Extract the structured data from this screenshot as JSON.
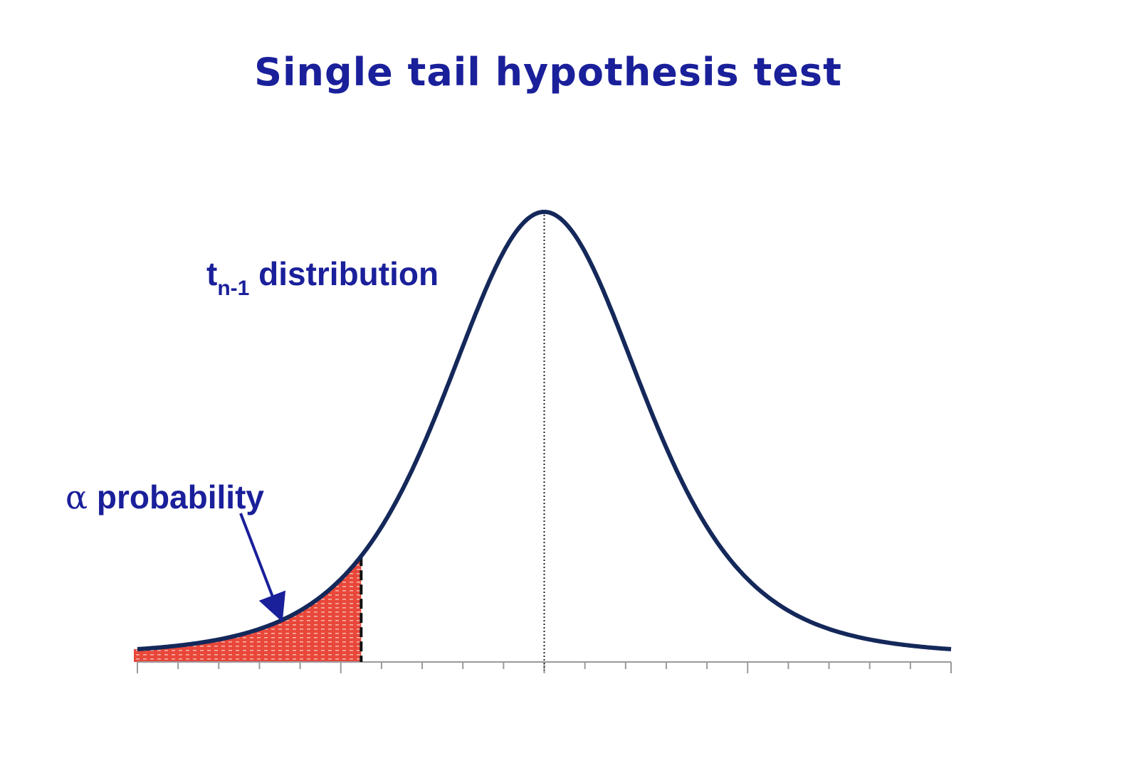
{
  "title": "Single tail hypothesis test",
  "distribution_label": {
    "main": "t",
    "subscript": "n-1",
    "suffix": " distribution"
  },
  "alpha_label": {
    "symbol": "α",
    "text": " probability"
  },
  "diagram": {
    "curve": "t distribution density, symmetric about 0",
    "shaded_region": "left tail",
    "x_min": -4,
    "x_max": 4,
    "critical_value": -1.8,
    "tick_step": 0.4
  },
  "colors": {
    "text": "#1a1f9a",
    "curve": "#14285a",
    "tail_fill": "#e8473a",
    "axis": "#9a9a9a"
  }
}
